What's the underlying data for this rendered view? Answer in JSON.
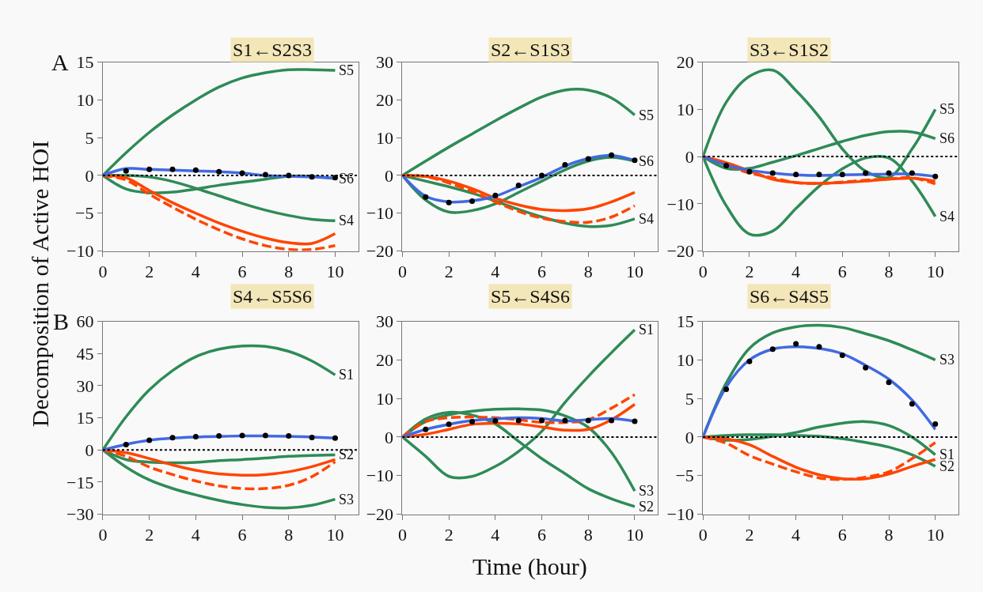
{
  "chart_data": [
    {
      "type": "line",
      "title": "S1←S2S3",
      "ylabel": "Decomposition of Active HOI",
      "annotations": [
        "A"
      ],
      "x": [
        0,
        1,
        2,
        3,
        4,
        5,
        6,
        7,
        8,
        9,
        10
      ],
      "xlim": [
        0,
        11
      ],
      "xticks": [
        0,
        2,
        4,
        6,
        8,
        10
      ],
      "ylim": [
        -10,
        15
      ],
      "yticks": [
        -10,
        -5,
        0,
        5,
        10,
        15
      ],
      "ref_lines": [
        {
          "axis": "y",
          "value": 0,
          "color": "#000000",
          "line_style": "dotted"
        }
      ],
      "series": [
        {
          "name": "S5",
          "color": "#2e8b57",
          "values": [
            0,
            3,
            5.7,
            8,
            10,
            11.7,
            12.9,
            13.6,
            14,
            14,
            13.9
          ]
        },
        {
          "name": "S6",
          "color": "#2e8b57",
          "values": [
            0,
            -1.8,
            -2.3,
            -2.2,
            -1.8,
            -1.3,
            -0.9,
            -0.5,
            -0.1,
            -0.1,
            -0.4
          ]
        },
        {
          "name": "S4",
          "color": "#2e8b57",
          "values": [
            0,
            0,
            -0.2,
            -0.8,
            -1.7,
            -2.7,
            -3.7,
            -4.6,
            -5.3,
            -5.8,
            -6.0
          ]
        },
        {
          "color": "#ff4500",
          "values": [
            0,
            -0.3,
            -2,
            -3.6,
            -5,
            -6.3,
            -7.4,
            -8.3,
            -8.9,
            -9.0,
            -7.7
          ]
        },
        {
          "color": "#ff4500",
          "line_style": "dashed",
          "values": [
            0,
            -0.6,
            -2.5,
            -4.2,
            -5.8,
            -7.2,
            -8.4,
            -9.3,
            -9.8,
            -9.8,
            -9.3
          ]
        },
        {
          "color": "#4169e1",
          "values": [
            0,
            0.9,
            0.8,
            0.7,
            0.6,
            0.5,
            0.3,
            0,
            -0.1,
            -0.2,
            -0.4
          ]
        },
        {
          "type": "scatter",
          "marker": "circle",
          "color": "#000000",
          "x": [
            1,
            2,
            3,
            4,
            5,
            6,
            7,
            8,
            9,
            10
          ],
          "values": [
            0.6,
            0.8,
            0.8,
            0.7,
            0.5,
            0.3,
            0.1,
            0,
            -0.2,
            -0.3
          ]
        }
      ]
    },
    {
      "type": "line",
      "title": "S2←S1S3",
      "x": [
        0,
        1,
        2,
        3,
        4,
        5,
        6,
        7,
        8,
        9,
        10
      ],
      "xlim": [
        0,
        11
      ],
      "xticks": [
        0,
        2,
        4,
        6,
        8,
        10
      ],
      "ylim": [
        -20,
        30
      ],
      "yticks": [
        -20,
        -10,
        0,
        10,
        20,
        30
      ],
      "ref_lines": [
        {
          "axis": "y",
          "value": 0,
          "color": "#000000",
          "line_style": "dotted"
        }
      ],
      "series": [
        {
          "name": "S5",
          "color": "#2e8b57",
          "values": [
            0,
            3.8,
            7.5,
            11,
            14.5,
            17.8,
            20.8,
            22.6,
            22.6,
            20.5,
            16
          ]
        },
        {
          "name": "S6",
          "color": "#2e8b57",
          "values": [
            0,
            -6.5,
            -9.7,
            -9.3,
            -7.5,
            -4.5,
            -1.5,
            1.5,
            3.8,
            4.8,
            3.8
          ]
        },
        {
          "name": "S4",
          "color": "#2e8b57",
          "values": [
            0,
            -1.5,
            -3,
            -4.7,
            -6.8,
            -9,
            -11,
            -12.6,
            -13.5,
            -13.2,
            -11.5
          ]
        },
        {
          "color": "#ff4500",
          "values": [
            0,
            -0.2,
            -1.5,
            -3.5,
            -6,
            -7.8,
            -9,
            -9.3,
            -8.8,
            -7,
            -4.5
          ]
        },
        {
          "color": "#ff4500",
          "line_style": "dashed",
          "values": [
            0,
            -0.3,
            -2,
            -4.2,
            -7,
            -9.5,
            -11.3,
            -12.2,
            -12.4,
            -11,
            -8
          ]
        },
        {
          "color": "#4169e1",
          "values": [
            0,
            -5.5,
            -7,
            -6.7,
            -5.5,
            -3,
            -0.5,
            2.5,
            4.5,
            5.3,
            4
          ]
        },
        {
          "type": "scatter",
          "marker": "circle",
          "color": "#000000",
          "x": [
            1,
            2,
            3,
            4,
            5,
            6,
            7,
            8,
            9,
            10
          ],
          "values": [
            -5.7,
            -7.2,
            -6.8,
            -5.3,
            -2.6,
            0,
            2.8,
            4.4,
            5.4,
            4.0
          ]
        }
      ]
    },
    {
      "type": "line",
      "title": "S3←S1S2",
      "x": [
        0,
        1,
        2,
        3,
        4,
        5,
        6,
        7,
        8,
        9,
        10
      ],
      "xlim": [
        0,
        11
      ],
      "xticks": [
        0,
        2,
        4,
        6,
        8,
        10
      ],
      "ylim": [
        -20,
        20
      ],
      "yticks": [
        -20,
        -10,
        0,
        10,
        20
      ],
      "ref_lines": [
        {
          "axis": "y",
          "value": 0,
          "color": "#000000",
          "line_style": "dotted"
        }
      ],
      "series": [
        {
          "name": "S5",
          "color": "#2e8b57",
          "values": [
            0,
            11.5,
            17,
            18.3,
            14,
            8.4,
            1.6,
            -3.1,
            -4.4,
            1.6,
            10
          ]
        },
        {
          "name": "S6",
          "color": "#2e8b57",
          "values": [
            0,
            -2.5,
            -2.5,
            -1.2,
            0.2,
            1.7,
            3.2,
            4.5,
            5.3,
            5.2,
            3.8
          ]
        },
        {
          "name": "S4",
          "color": "#2e8b57",
          "values": [
            0,
            -10.4,
            -16.4,
            -15.8,
            -11,
            -6.3,
            -2.6,
            -0.3,
            -0.3,
            -5.2,
            -12.7
          ]
        },
        {
          "color": "#ff4500",
          "values": [
            0,
            -1.3,
            -3,
            -4.8,
            -5.5,
            -5.7,
            -5.5,
            -5.2,
            -4.8,
            -4.6,
            -5.2
          ]
        },
        {
          "color": "#ff4500",
          "line_style": "dashed",
          "values": [
            0,
            -1.8,
            -3.5,
            -4.5,
            -5.5,
            -5.7,
            -5.4,
            -5,
            -4.7,
            -4.5,
            -5.8
          ]
        },
        {
          "color": "#4169e1",
          "values": [
            0,
            -1.8,
            -2.9,
            -3.5,
            -3.9,
            -4.0,
            -3.9,
            -3.8,
            -3.7,
            -3.7,
            -4.2
          ]
        },
        {
          "type": "scatter",
          "marker": "circle",
          "color": "#000000",
          "x": [
            1,
            2,
            3,
            4,
            5,
            6,
            7,
            8,
            9,
            10
          ],
          "values": [
            -1.9,
            -3.2,
            -3.5,
            -3.8,
            -3.8,
            -3.8,
            -3.5,
            -3.5,
            -3.5,
            -4.2
          ]
        }
      ]
    },
    {
      "type": "line",
      "title": "S4←S5S6",
      "annotations": [
        "B"
      ],
      "x": [
        0,
        1,
        2,
        3,
        4,
        5,
        6,
        7,
        8,
        9,
        10
      ],
      "xlim": [
        0,
        11
      ],
      "xticks": [
        0,
        2,
        4,
        6,
        8,
        10
      ],
      "ylim": [
        -30,
        60
      ],
      "yticks": [
        -30,
        -15,
        0,
        15,
        30,
        45,
        60
      ],
      "ref_lines": [
        {
          "axis": "y",
          "value": 0,
          "color": "#000000",
          "line_style": "dotted"
        }
      ],
      "series": [
        {
          "name": "S1",
          "color": "#2e8b57",
          "values": [
            0,
            15.5,
            28,
            37,
            43.5,
            47,
            48.5,
            48.3,
            46,
            41.5,
            35
          ]
        },
        {
          "name": "S2",
          "color": "#2e8b57",
          "values": [
            0,
            -4.5,
            -5.7,
            -6,
            -5.8,
            -5,
            -4.5,
            -3.8,
            -3,
            -2.6,
            -2.3
          ]
        },
        {
          "name": "S3",
          "color": "#2e8b57",
          "values": [
            0,
            -8,
            -14,
            -18,
            -21,
            -23.5,
            -25.5,
            -26.8,
            -27,
            -25.8,
            -23
          ]
        },
        {
          "color": "#ff4500",
          "values": [
            0,
            -1.3,
            -4,
            -7,
            -9.5,
            -11.2,
            -11.8,
            -11.5,
            -10.2,
            -7.8,
            -4.5
          ]
        },
        {
          "color": "#ff4500",
          "line_style": "dashed",
          "values": [
            0,
            -3,
            -8,
            -11.5,
            -14.5,
            -16.8,
            -18,
            -18,
            -16.5,
            -12.5,
            -5.5
          ]
        },
        {
          "color": "#4169e1",
          "values": [
            0,
            2.6,
            4.5,
            5.5,
            6,
            6.3,
            6.5,
            6.5,
            6.4,
            6,
            5.5
          ]
        },
        {
          "type": "scatter",
          "marker": "circle",
          "color": "#000000",
          "x": [
            1,
            2,
            3,
            4,
            5,
            6,
            7,
            8,
            9,
            10
          ],
          "values": [
            2.5,
            4.5,
            5.7,
            6.2,
            6.5,
            6.7,
            6.7,
            6.5,
            5.8,
            5.5
          ]
        }
      ]
    },
    {
      "type": "line",
      "title": "S5←S4S6",
      "xlabel": "Time (hour)",
      "x": [
        0,
        1,
        2,
        3,
        4,
        5,
        6,
        7,
        8,
        9,
        10
      ],
      "xlim": [
        0,
        11
      ],
      "xticks": [
        0,
        2,
        4,
        6,
        8,
        10
      ],
      "ylim": [
        -20,
        30
      ],
      "yticks": [
        -20,
        -10,
        0,
        10,
        20,
        30
      ],
      "ref_lines": [
        {
          "axis": "y",
          "value": 0,
          "color": "#000000",
          "line_style": "dotted"
        }
      ],
      "series": [
        {
          "name": "S1",
          "color": "#2e8b57",
          "values": [
            0,
            -5,
            -10.2,
            -10.2,
            -7.6,
            -3.7,
            1.5,
            9,
            15.7,
            21.9,
            27.8
          ]
        },
        {
          "name": "S3",
          "color": "#2e8b57",
          "values": [
            0,
            4,
            5.8,
            6.7,
            7.2,
            7.3,
            7,
            5.5,
            2.5,
            -4,
            -14
          ]
        },
        {
          "name": "S2",
          "color": "#2e8b57",
          "values": [
            0,
            4.7,
            6.4,
            5.7,
            3.4,
            -1.1,
            -5.6,
            -9.5,
            -13.4,
            -16,
            -18
          ]
        },
        {
          "color": "#ff4500",
          "values": [
            0,
            0.7,
            2,
            3.3,
            3.6,
            3.4,
            2.6,
            1.8,
            2,
            4.5,
            8.5
          ]
        },
        {
          "color": "#ff4500",
          "line_style": "dashed",
          "values": [
            0,
            4,
            5,
            5.2,
            5,
            4.5,
            3.8,
            3.8,
            4.5,
            7.5,
            11
          ]
        },
        {
          "color": "#4169e1",
          "values": [
            0,
            2,
            3.3,
            4.3,
            4.7,
            5,
            4.8,
            4.2,
            4.5,
            4.8,
            4.1
          ]
        },
        {
          "type": "scatter",
          "marker": "circle",
          "color": "#000000",
          "x": [
            1,
            2,
            3,
            4,
            5,
            6,
            7,
            8,
            9,
            10
          ],
          "values": [
            2,
            3.3,
            4,
            4.2,
            4.3,
            4.3,
            4.3,
            4.3,
            4.3,
            4.1
          ]
        }
      ]
    },
    {
      "type": "line",
      "title": "S6←S4S5",
      "x": [
        0,
        1,
        2,
        3,
        4,
        5,
        6,
        7,
        8,
        9,
        10
      ],
      "xlim": [
        0,
        11
      ],
      "xticks": [
        0,
        2,
        4,
        6,
        8,
        10
      ],
      "ylim": [
        -10,
        15
      ],
      "yticks": [
        -10,
        -5,
        0,
        5,
        10,
        15
      ],
      "ref_lines": [
        {
          "axis": "y",
          "value": 0,
          "color": "#000000",
          "line_style": "dotted"
        }
      ],
      "series": [
        {
          "name": "S3",
          "color": "#2e8b57",
          "values": [
            0,
            7,
            11.5,
            13.5,
            14.3,
            14.5,
            14.2,
            13.4,
            12.5,
            11.3,
            10
          ]
        },
        {
          "name": "S1",
          "color": "#2e8b57",
          "values": [
            0,
            -0.4,
            -0.3,
            0.1,
            0.6,
            1.3,
            1.8,
            2,
            1.5,
            0,
            -2.3
          ]
        },
        {
          "name": "S2",
          "color": "#2e8b57",
          "values": [
            0,
            0.2,
            0.3,
            0.3,
            0.2,
            0.1,
            -0.2,
            -0.7,
            -1.3,
            -2.3,
            -3.8
          ]
        },
        {
          "color": "#ff4500",
          "values": [
            0,
            -0.2,
            -1,
            -2.5,
            -3.9,
            -4.9,
            -5.4,
            -5.4,
            -4.8,
            -3.8,
            -2.9
          ]
        },
        {
          "color": "#ff4500",
          "line_style": "dashed",
          "values": [
            0,
            -0.8,
            -2.4,
            -3.5,
            -4.5,
            -5.3,
            -5.5,
            -5.2,
            -4.5,
            -2.8,
            -0.7
          ]
        },
        {
          "color": "#4169e1",
          "values": [
            0,
            6.5,
            10,
            11.4,
            11.7,
            11.5,
            10.8,
            9.3,
            7.5,
            4.8,
            1
          ]
        },
        {
          "type": "scatter",
          "marker": "circle",
          "color": "#000000",
          "x": [
            1,
            2,
            3,
            4,
            5,
            6,
            7,
            8,
            9,
            10
          ],
          "values": [
            6.2,
            9.8,
            11.4,
            12.1,
            11.7,
            10.6,
            9,
            7.1,
            4.3,
            1.7
          ]
        }
      ]
    }
  ]
}
